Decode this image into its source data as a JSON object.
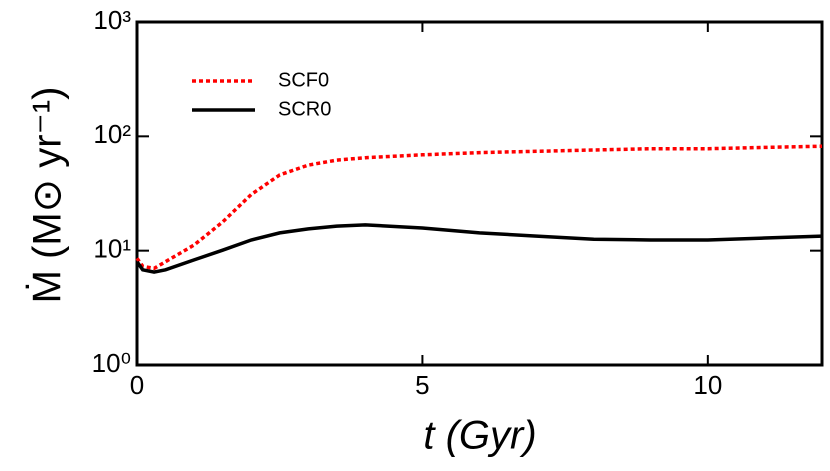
{
  "chart_data": {
    "type": "line",
    "xlabel": "t (Gyr)",
    "ylabel": "Ṁ (M⊙ yr⁻¹)",
    "xlim": [
      0,
      12
    ],
    "xticks": [
      0,
      5,
      10
    ],
    "ylim": [
      1,
      1000
    ],
    "log_y": true,
    "yticks": [
      {
        "value": 1,
        "label": "10⁰"
      },
      {
        "value": 10,
        "label": "10¹"
      },
      {
        "value": 100,
        "label": "10²"
      },
      {
        "value": 1000,
        "label": "10³"
      }
    ],
    "legend": "upper left",
    "x": [
      0,
      0.1,
      0.3,
      0.5,
      1,
      1.5,
      2,
      2.5,
      3,
      3.5,
      4,
      5,
      6,
      7,
      8,
      9,
      10,
      11,
      12
    ],
    "series": [
      {
        "name": "SCF0",
        "color": "#ff0000",
        "dash": "dotted",
        "values": [
          8.6,
          7.3,
          7.0,
          8.0,
          11.2,
          17.8,
          31,
          46,
          56,
          62,
          65,
          69,
          72,
          74,
          76,
          78,
          78,
          80,
          82
        ]
      },
      {
        "name": "SCR0",
        "color": "#000000",
        "dash": "solid",
        "values": [
          8.0,
          6.8,
          6.5,
          6.8,
          8.3,
          10.1,
          12.4,
          14.3,
          15.5,
          16.4,
          16.8,
          15.8,
          14.3,
          13.4,
          12.6,
          12.4,
          12.4,
          12.9,
          13.4
        ]
      }
    ]
  }
}
